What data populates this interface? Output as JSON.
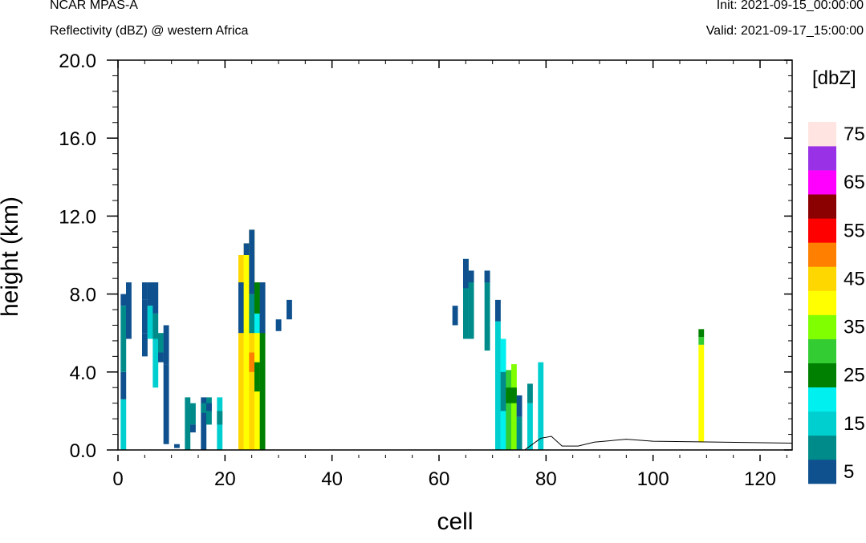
{
  "header": {
    "left_line1": "NCAR MPAS-A",
    "left_line2": "Reflectivity (dBZ) @ western Africa",
    "right_line1": "Init: 2021-09-15_00:00:00",
    "right_line2": "Valid: 2021-09-17_15:00:00"
  },
  "chart_data": {
    "type": "heatmap",
    "title": "",
    "xlabel": "cell",
    "ylabel": "height (km)",
    "xlim": [
      0,
      126
    ],
    "ylim": [
      0,
      20
    ],
    "xticks": [
      0,
      20,
      40,
      60,
      80,
      100,
      120
    ],
    "xtick_labels": [
      "0",
      "20",
      "40",
      "60",
      "80",
      "100",
      "120"
    ],
    "yticks": [
      0,
      4,
      8,
      12,
      16,
      20
    ],
    "ytick_labels": [
      "0.0",
      "4.0",
      "8.0",
      "12.0",
      "16.0",
      "20.0"
    ],
    "colorbar": {
      "unit_label": "[dbZ]",
      "labels": [
        "5",
        "15",
        "25",
        "35",
        "45",
        "55",
        "65",
        "75"
      ],
      "colors": [
        "#0f518e",
        "#008b8b",
        "#00cfcf",
        "#00f0f0",
        "#008000",
        "#33cc33",
        "#80ff00",
        "#ffff00",
        "#ffd700",
        "#ff8000",
        "#ff0000",
        "#8b0000",
        "#ff00ff",
        "#9932e6",
        "#ffe4e1"
      ]
    },
    "cell_width": 1,
    "cell_height_km": 0.28,
    "columns": [
      {
        "x": 1,
        "segments": [
          [
            0,
            2.6,
            2
          ],
          [
            2.6,
            4,
            0
          ],
          [
            4,
            7.4,
            1
          ],
          [
            7.4,
            8,
            0
          ]
        ]
      },
      {
        "x": 2,
        "segments": [
          [
            5.7,
            8.6,
            0
          ]
        ]
      },
      {
        "x": 5,
        "segments": [
          [
            4.8,
            6,
            0
          ],
          [
            6,
            7.7,
            0
          ],
          [
            7.7,
            8.6,
            0
          ]
        ]
      },
      {
        "x": 6,
        "segments": [
          [
            5.7,
            7.4,
            2
          ],
          [
            7.4,
            8.6,
            0
          ]
        ]
      },
      {
        "x": 7,
        "segments": [
          [
            3.2,
            5.7,
            2
          ],
          [
            5.7,
            7,
            1
          ],
          [
            7,
            8.6,
            0
          ]
        ]
      },
      {
        "x": 8,
        "segments": [
          [
            4.5,
            5,
            0
          ],
          [
            5,
            6,
            1
          ]
        ]
      },
      {
        "x": 9,
        "segments": [
          [
            0.3,
            4.4,
            0
          ],
          [
            4.4,
            6.4,
            0
          ]
        ]
      },
      {
        "x": 11,
        "segments": [
          [
            0.1,
            0.3,
            0
          ]
        ]
      },
      {
        "x": 13,
        "segments": [
          [
            0,
            2.7,
            1
          ]
        ]
      },
      {
        "x": 14,
        "segments": [
          [
            1.3,
            2.4,
            1
          ],
          [
            0.9,
            1.3,
            0
          ]
        ]
      },
      {
        "x": 16,
        "segments": [
          [
            0,
            2.7,
            0
          ],
          [
            1.9,
            2.4,
            1
          ]
        ]
      },
      {
        "x": 17,
        "segments": [
          [
            1.3,
            2.7,
            1
          ],
          [
            2,
            2.4,
            0
          ]
        ]
      },
      {
        "x": 19,
        "segments": [
          [
            0,
            2.7,
            2
          ],
          [
            1.3,
            2,
            1
          ]
        ]
      },
      {
        "x": 23,
        "segments": [
          [
            0,
            10,
            8
          ],
          [
            6,
            8.6,
            0
          ]
        ]
      },
      {
        "x": 24,
        "segments": [
          [
            0,
            10.6,
            7
          ],
          [
            10,
            10.6,
            0
          ]
        ]
      },
      {
        "x": 25,
        "segments": [
          [
            0,
            11.3,
            8
          ],
          [
            4,
            5,
            9
          ],
          [
            6,
            8,
            1
          ],
          [
            8,
            11.3,
            0
          ]
        ]
      },
      {
        "x": 26,
        "segments": [
          [
            0,
            8.6,
            7
          ],
          [
            3,
            4.5,
            4
          ],
          [
            6,
            7,
            3
          ],
          [
            7,
            8.6,
            4
          ]
        ]
      },
      {
        "x": 27,
        "segments": [
          [
            0,
            8.6,
            4
          ],
          [
            6,
            8.6,
            0
          ]
        ]
      },
      {
        "x": 30,
        "segments": [
          [
            6.1,
            6.7,
            0
          ]
        ]
      },
      {
        "x": 32,
        "segments": [
          [
            6.7,
            7.7,
            0
          ]
        ]
      },
      {
        "x": 63,
        "segments": [
          [
            6.4,
            7.4,
            0
          ]
        ]
      },
      {
        "x": 65,
        "segments": [
          [
            5.7,
            9.8,
            1
          ],
          [
            8.3,
            9.8,
            0
          ]
        ]
      },
      {
        "x": 66,
        "segments": [
          [
            5.7,
            9.2,
            1
          ],
          [
            8.6,
            9.2,
            0
          ]
        ]
      },
      {
        "x": 69,
        "segments": [
          [
            5.1,
            9.2,
            1
          ],
          [
            8.6,
            9.2,
            0
          ]
        ]
      },
      {
        "x": 71,
        "segments": [
          [
            0,
            6.6,
            2
          ],
          [
            6.6,
            7.7,
            0
          ]
        ]
      },
      {
        "x": 72,
        "segments": [
          [
            0,
            5.7,
            3
          ],
          [
            2,
            4,
            1
          ]
        ]
      },
      {
        "x": 73,
        "segments": [
          [
            0,
            4.1,
            5
          ],
          [
            2.4,
            3.2,
            4
          ]
        ]
      },
      {
        "x": 74,
        "segments": [
          [
            0,
            4.4,
            6
          ],
          [
            2.4,
            3.2,
            4
          ]
        ]
      },
      {
        "x": 75,
        "segments": [
          [
            0,
            1.7,
            1
          ],
          [
            1.7,
            2.8,
            0
          ]
        ]
      },
      {
        "x": 77,
        "segments": [
          [
            0,
            2.4,
            2
          ],
          [
            2.4,
            3.4,
            1
          ]
        ]
      },
      {
        "x": 79,
        "segments": [
          [
            0,
            4.5,
            2
          ]
        ]
      },
      {
        "x": 109,
        "segments": [
          [
            0.4,
            5.4,
            7
          ],
          [
            5.4,
            5.8,
            5
          ],
          [
            5.8,
            6.2,
            4
          ]
        ]
      }
    ],
    "terrain": [
      [
        76,
        0
      ],
      [
        79,
        0.6
      ],
      [
        81,
        0.7
      ],
      [
        83,
        0.2
      ],
      [
        86,
        0.2
      ],
      [
        89,
        0.4
      ],
      [
        95,
        0.55
      ],
      [
        100,
        0.45
      ],
      [
        126,
        0.35
      ]
    ]
  }
}
